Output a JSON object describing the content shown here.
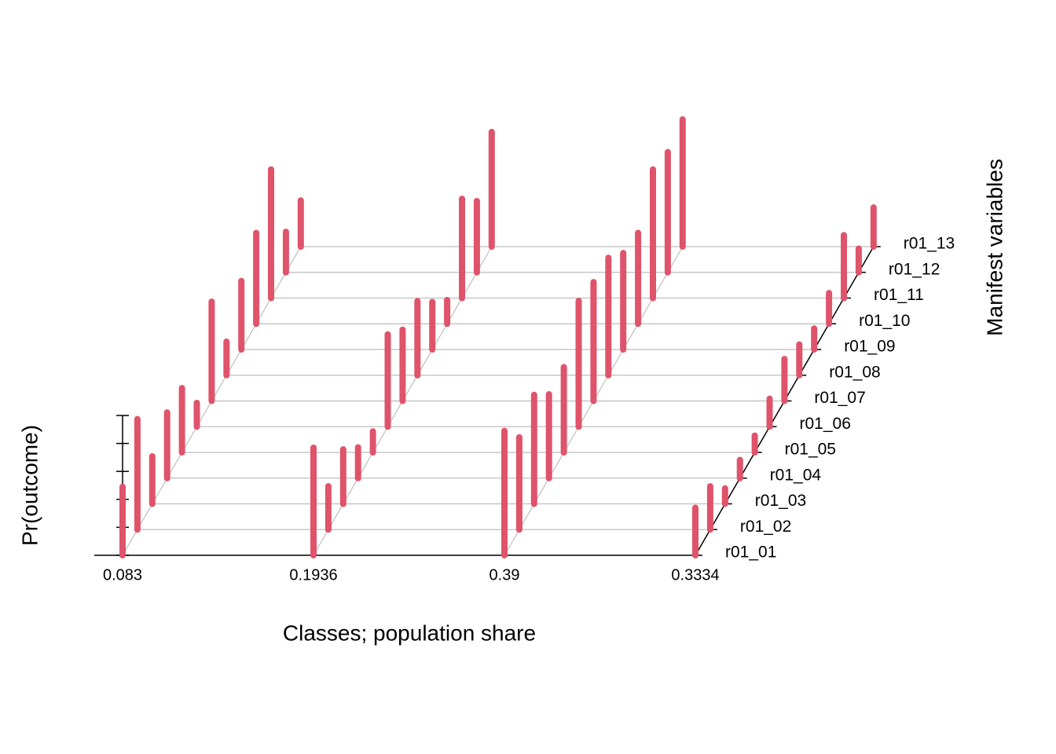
{
  "chart_data": {
    "type": "bar3d",
    "x_label": "Classes; population share",
    "y_label": "Manifest variables",
    "z_label": "Pr(outcome)",
    "classes": [
      0.083,
      0.1936,
      0.39,
      0.3334
    ],
    "variables": [
      "r01_01",
      "r01_02",
      "r01_03",
      "r01_04",
      "r01_05",
      "r01_06",
      "r01_07",
      "r01_08",
      "r01_09",
      "r01_10",
      "r01_11",
      "r01_12",
      "r01_13"
    ],
    "values": [
      [
        0.49,
        0.79,
        0.34,
        0.47,
        0.46,
        0.17,
        0.71,
        0.24,
        0.49,
        0.65,
        0.92,
        0.29,
        0.33
      ],
      [
        0.77,
        0.31,
        0.39,
        0.22,
        0.15,
        0.66,
        0.51,
        0.53,
        0.34,
        0.17,
        0.71,
        0.51,
        0.82
      ],
      [
        0.89,
        0.66,
        0.78,
        0.6,
        0.61,
        0.9,
        0.85,
        0.84,
        0.69,
        0.65,
        0.92,
        0.86,
        0.91
      ],
      [
        0.34,
        0.31,
        0.11,
        0.13,
        0.12,
        0.2,
        0.3,
        0.22,
        0.15,
        0.22,
        0.45,
        0.17,
        0.28
      ]
    ],
    "color": "#df536b",
    "zlim": [
      0,
      1
    ],
    "zticks": [
      0,
      0.2,
      0.4,
      0.6,
      0.8,
      1
    ]
  }
}
